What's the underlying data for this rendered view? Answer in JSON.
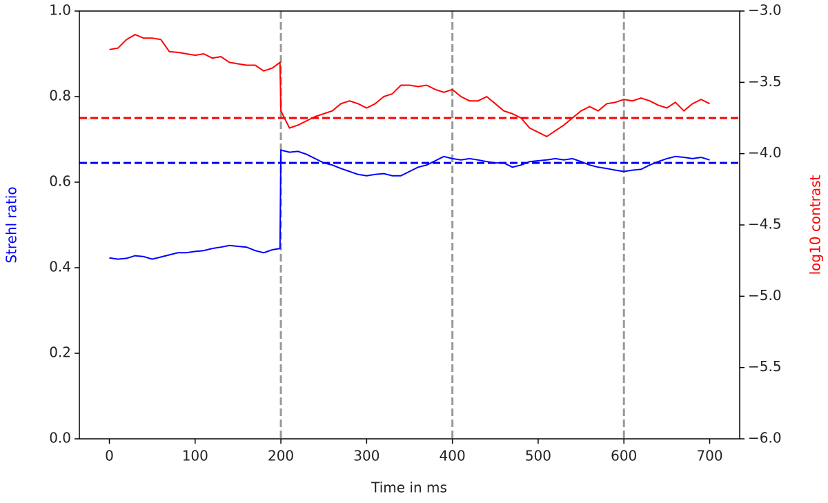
{
  "chart_data": {
    "type": "line",
    "x_label": "Time in ms",
    "y_label": "Strehl ratio",
    "y2_label": "log10 contrast",
    "x": [
      0,
      10,
      20,
      30,
      40,
      50,
      60,
      70,
      80,
      90,
      100,
      110,
      120,
      130,
      140,
      150,
      160,
      170,
      180,
      190,
      199,
      200,
      210,
      220,
      230,
      240,
      250,
      260,
      270,
      280,
      290,
      300,
      310,
      320,
      330,
      340,
      350,
      360,
      370,
      380,
      390,
      400,
      410,
      420,
      430,
      440,
      450,
      460,
      470,
      480,
      490,
      500,
      510,
      520,
      530,
      540,
      550,
      560,
      570,
      580,
      590,
      600,
      610,
      620,
      630,
      640,
      650,
      660,
      670,
      680,
      690,
      700
    ],
    "series": [
      {
        "name": "Strehl ratio",
        "color": "#0000ff",
        "axis": "y",
        "values": [
          0.423,
          0.42,
          0.422,
          0.428,
          0.426,
          0.42,
          0.425,
          0.43,
          0.435,
          0.435,
          0.438,
          0.44,
          0.445,
          0.448,
          0.452,
          0.45,
          0.448,
          0.44,
          0.435,
          0.442,
          0.445,
          0.675,
          0.67,
          0.672,
          0.665,
          0.655,
          0.645,
          0.64,
          0.632,
          0.625,
          0.618,
          0.615,
          0.618,
          0.62,
          0.615,
          0.615,
          0.625,
          0.635,
          0.64,
          0.65,
          0.66,
          0.655,
          0.652,
          0.655,
          0.652,
          0.648,
          0.645,
          0.645,
          0.635,
          0.64,
          0.648,
          0.65,
          0.652,
          0.655,
          0.652,
          0.655,
          0.648,
          0.64,
          0.635,
          0.632,
          0.628,
          0.625,
          0.628,
          0.63,
          0.64,
          0.648,
          0.655,
          0.66,
          0.658,
          0.655,
          0.658,
          0.652
        ]
      },
      {
        "name": "log10 contrast",
        "color": "#ff0000",
        "axis": "y2",
        "values": [
          -3.27,
          -3.26,
          -3.2,
          -3.165,
          -3.19,
          -3.19,
          -3.2,
          -3.285,
          -3.29,
          -3.3,
          -3.31,
          -3.3,
          -3.33,
          -3.32,
          -3.36,
          -3.37,
          -3.38,
          -3.38,
          -3.42,
          -3.4,
          -3.36,
          -3.7,
          -3.82,
          -3.8,
          -3.77,
          -3.74,
          -3.72,
          -3.7,
          -3.65,
          -3.63,
          -3.65,
          -3.68,
          -3.65,
          -3.6,
          -3.58,
          -3.52,
          -3.52,
          -3.53,
          -3.52,
          -3.55,
          -3.57,
          -3.55,
          -3.6,
          -3.63,
          -3.63,
          -3.6,
          -3.65,
          -3.7,
          -3.72,
          -3.75,
          -3.82,
          -3.85,
          -3.88,
          -3.84,
          -3.8,
          -3.75,
          -3.7,
          -3.67,
          -3.7,
          -3.65,
          -3.64,
          -3.62,
          -3.63,
          -3.61,
          -3.63,
          -3.66,
          -3.68,
          -3.64,
          -3.7,
          -3.65,
          -3.62,
          -3.65
        ]
      }
    ],
    "hlines": [
      {
        "value": 0.645,
        "axis": "y",
        "color": "#0000ff"
      },
      {
        "value": -3.75,
        "axis": "y2",
        "color": "#ff0000"
      }
    ],
    "vlines": [
      200,
      400,
      600
    ],
    "vline_color": "#999999",
    "xlim": [
      -35,
      735
    ],
    "xticks": [
      0,
      100,
      200,
      300,
      400,
      500,
      600,
      700
    ],
    "ylim": [
      0,
      1
    ],
    "yticks": [
      {
        "value": 0,
        "label": "0.0"
      },
      0.2,
      0.4,
      0.6,
      0.8,
      {
        "value": 1,
        "label": "1.0"
      }
    ],
    "y2lim": [
      -6,
      -3
    ],
    "y2ticks": [
      {
        "value": -6,
        "label": "−6.0"
      },
      {
        "value": -5.5,
        "label": "−5.5"
      },
      {
        "value": -5,
        "label": "−5.0"
      },
      {
        "value": -4.5,
        "label": "−4.5"
      },
      {
        "value": -4,
        "label": "−4.0"
      },
      {
        "value": -3.5,
        "label": "−3.5"
      },
      {
        "value": -3,
        "label": "−3.0"
      }
    ]
  }
}
